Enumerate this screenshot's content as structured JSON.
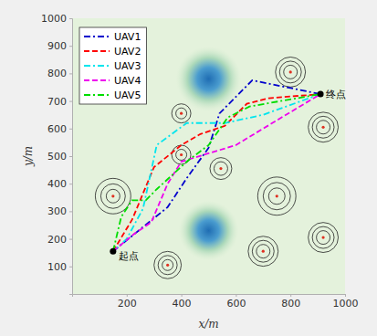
{
  "chart_data": {
    "type": "line",
    "x_label": "x/m",
    "y_label": "y/m",
    "xlim": [
      0,
      1000
    ],
    "ylim": [
      0,
      1000
    ],
    "xticks": [
      200,
      400,
      600,
      800,
      1000
    ],
    "yticks": [
      100,
      200,
      300,
      400,
      500,
      600,
      700,
      800,
      900,
      1000
    ],
    "grid": false,
    "legend": "upper left",
    "terrain": [
      {
        "x": 500,
        "y": 780,
        "r": 120
      },
      {
        "x": 500,
        "y": 230,
        "r": 110
      }
    ],
    "threats": [
      {
        "x": 150,
        "y": 355,
        "radii": [
          25,
          45,
          65
        ]
      },
      {
        "x": 400,
        "y": 655,
        "radii": [
          20,
          35
        ]
      },
      {
        "x": 400,
        "y": 505,
        "radii": [
          20,
          35
        ]
      },
      {
        "x": 350,
        "y": 105,
        "radii": [
          20,
          35,
          50
        ]
      },
      {
        "x": 545,
        "y": 455,
        "radii": [
          25,
          40
        ]
      },
      {
        "x": 750,
        "y": 355,
        "radii": [
          30,
          50,
          70
        ]
      },
      {
        "x": 700,
        "y": 155,
        "radii": [
          25,
          40,
          55
        ]
      },
      {
        "x": 800,
        "y": 805,
        "radii": [
          25,
          40,
          55
        ]
      },
      {
        "x": 920,
        "y": 605,
        "radii": [
          25,
          40,
          55
        ]
      },
      {
        "x": 920,
        "y": 205,
        "radii": [
          25,
          40,
          55
        ]
      }
    ],
    "annotations": [
      {
        "text": "起点",
        "x": 150,
        "y": 155
      },
      {
        "text": "终点",
        "x": 910,
        "y": 725
      }
    ],
    "series": [
      {
        "name": "UAV1",
        "color": "#0000cc",
        "line_style": "dashdot",
        "x": [
          150,
          350,
          420,
          500,
          540,
          660,
          910
        ],
        "values": [
          155,
          315,
          420,
          530,
          655,
          775,
          725
        ]
      },
      {
        "name": "UAV2",
        "color": "#ff0000",
        "line_style": "dashed",
        "x": [
          150,
          220,
          300,
          400,
          470,
          560,
          640,
          720,
          910
        ],
        "values": [
          155,
          270,
          460,
          540,
          580,
          610,
          690,
          710,
          725
        ]
      },
      {
        "name": "UAV3",
        "color": "#00e5ee",
        "line_style": "dashdot",
        "x": [
          150,
          200,
          260,
          310,
          420,
          560,
          700,
          910
        ],
        "values": [
          155,
          200,
          310,
          540,
          620,
          620,
          650,
          725
        ]
      },
      {
        "name": "UAV4",
        "color": "#ee00ee",
        "line_style": "dashed",
        "x": [
          150,
          230,
          290,
          350,
          400,
          500,
          600,
          700,
          910
        ],
        "values": [
          155,
          220,
          260,
          400,
          480,
          510,
          540,
          600,
          725
        ]
      },
      {
        "name": "UAV5",
        "color": "#00dd00",
        "line_style": "dashdot",
        "x": [
          150,
          180,
          220,
          270,
          310,
          420,
          500,
          570,
          650,
          910
        ],
        "values": [
          155,
          280,
          340,
          340,
          380,
          480,
          540,
          640,
          680,
          725
        ]
      }
    ]
  }
}
